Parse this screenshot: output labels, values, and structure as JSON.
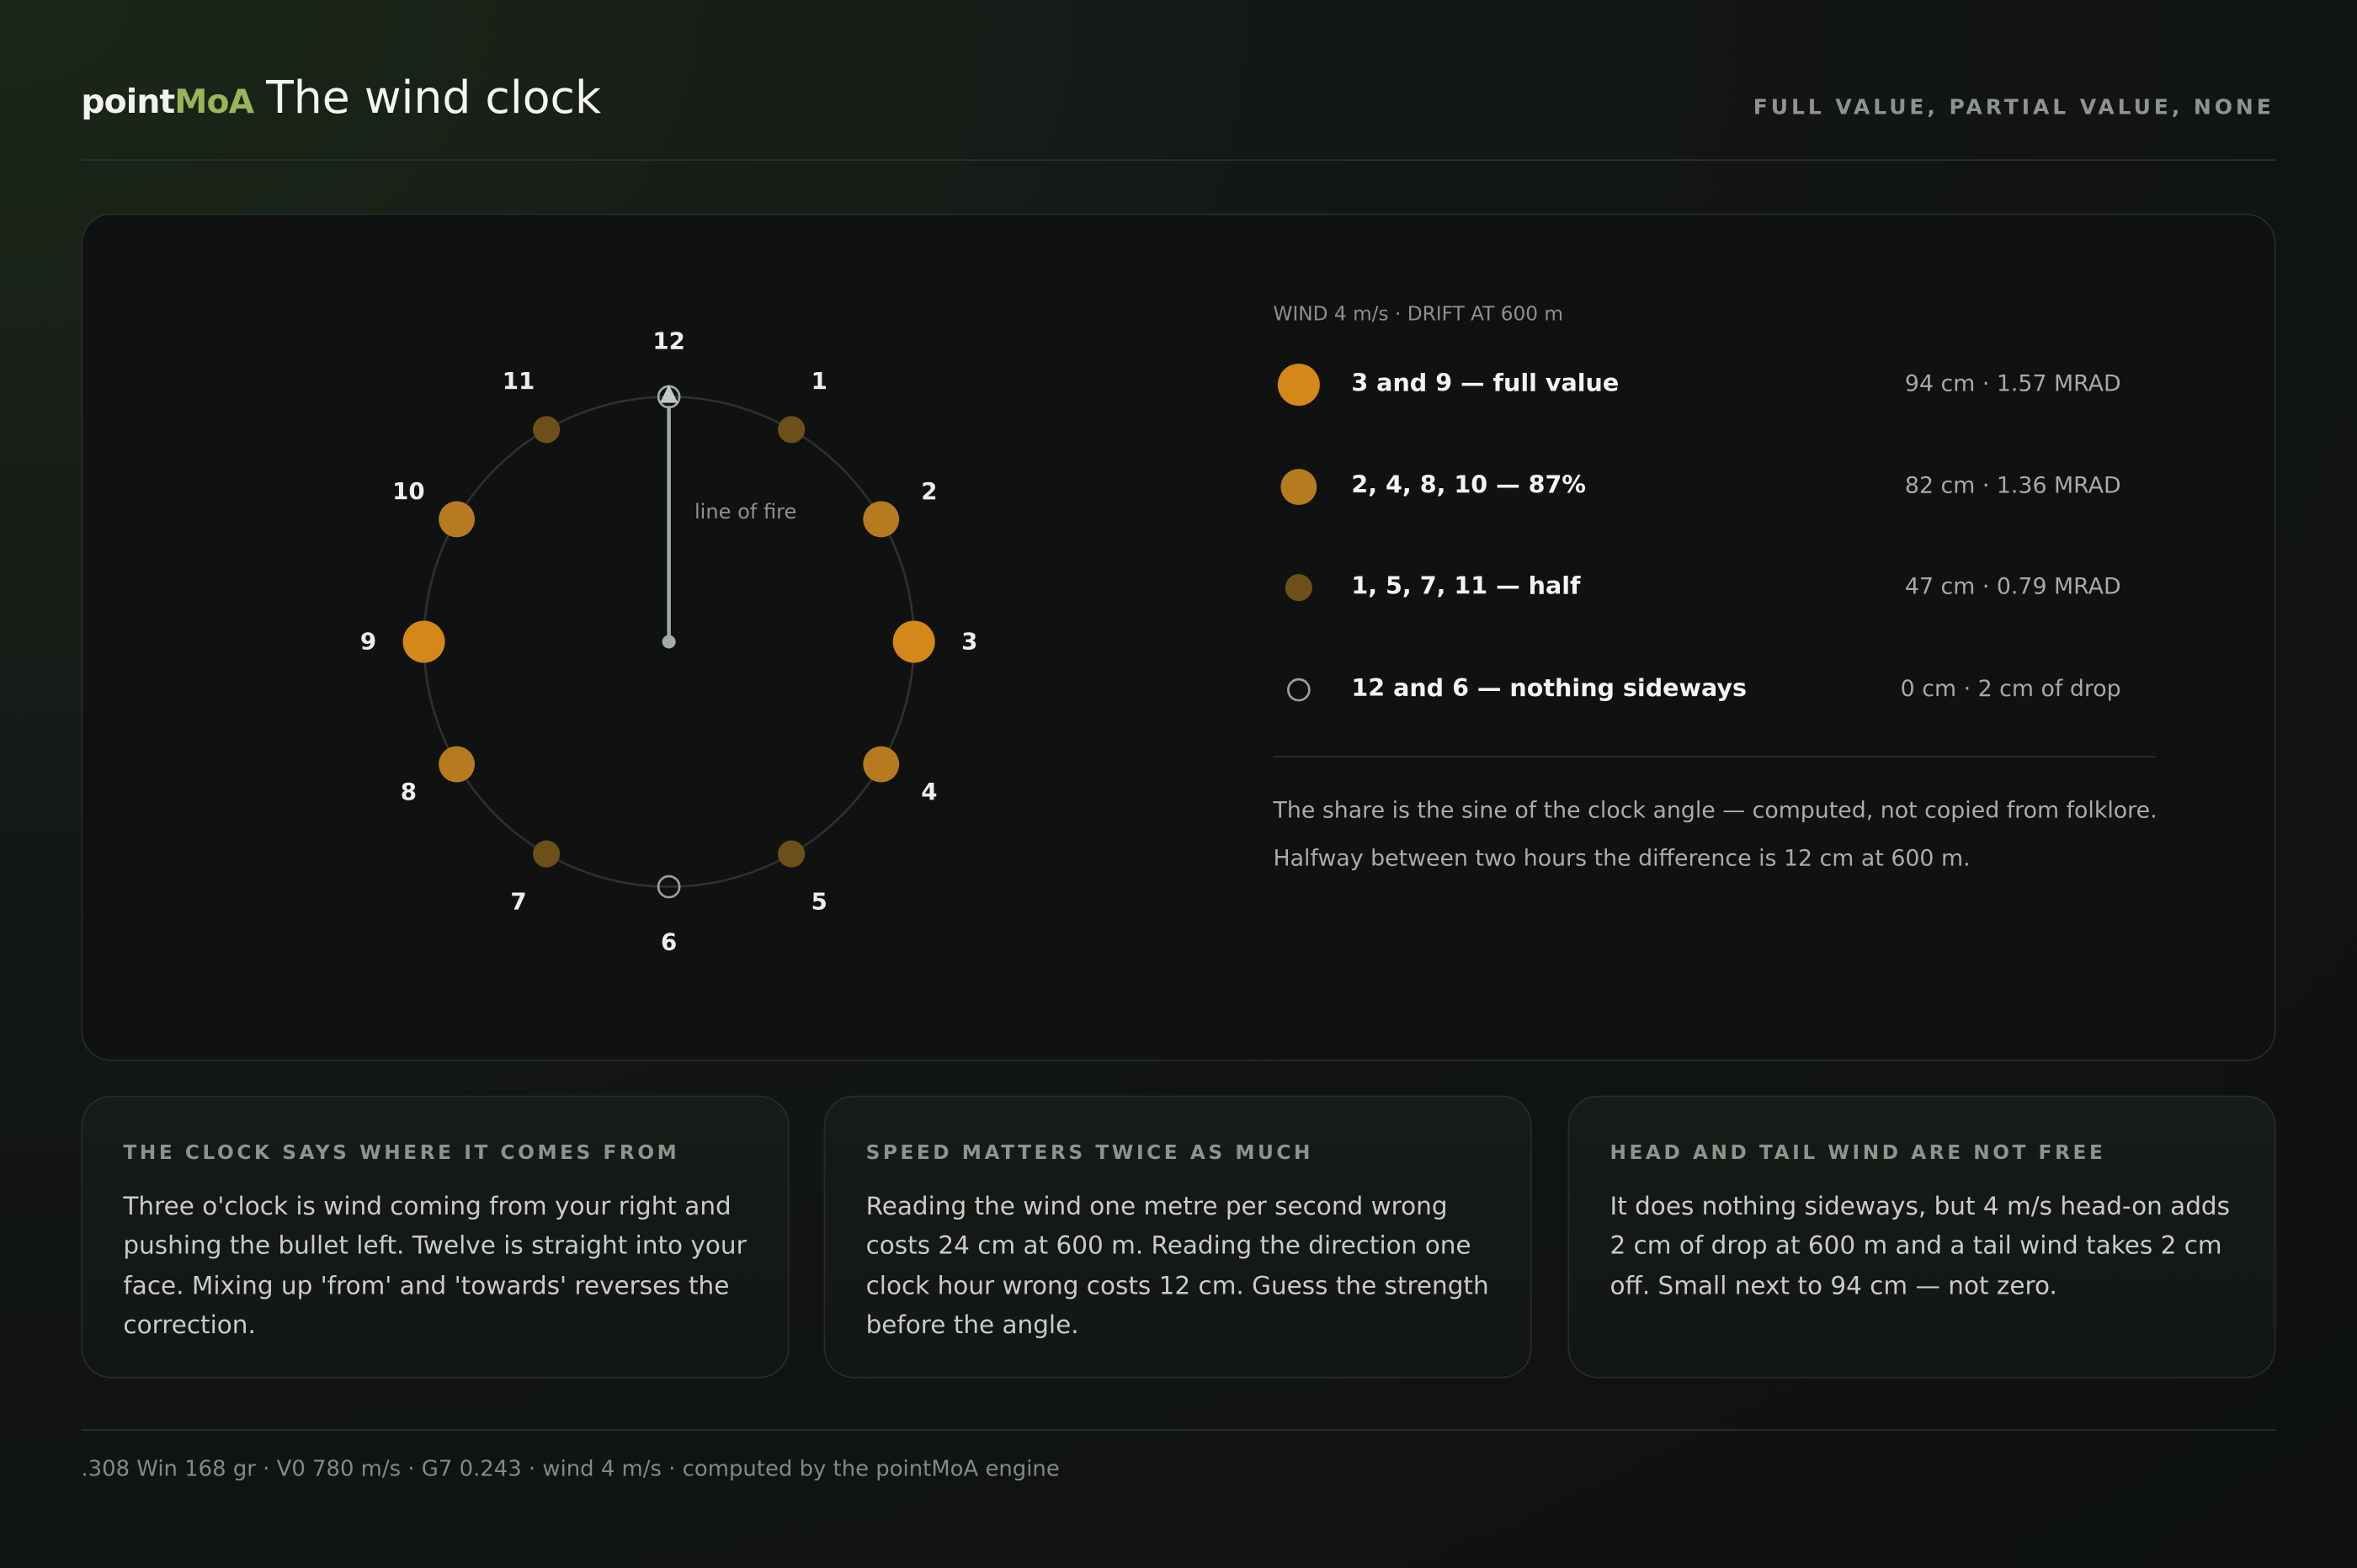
{
  "header": {
    "brand": [
      "point",
      "MoA"
    ],
    "title": "The wind clock",
    "tagline": "FULL VALUE, PARTIAL VALUE, NONE"
  },
  "clock": {
    "hours": [
      "12",
      "1",
      "2",
      "3",
      "4",
      "5",
      "6",
      "7",
      "8",
      "9",
      "10",
      "11"
    ],
    "line_label": "line of fire"
  },
  "legend": {
    "caption": "WIND 4 m/s · DRIFT AT 600 m",
    "rows": [
      {
        "label": "3 and 9 — full value",
        "value": "94 cm · 1.57 MRAD"
      },
      {
        "label": "2, 4, 8, 10 — 87%",
        "value": "82 cm · 1.36 MRAD"
      },
      {
        "label": "1, 5, 7, 11 — half",
        "value": "47 cm · 0.79 MRAD"
      },
      {
        "label": "12 and 6 — nothing sideways",
        "value": "0 cm · 2 cm of drop"
      }
    ],
    "notes": [
      "The share is the sine of the clock angle — computed, not copied from folklore.",
      "Halfway between two hours the difference is 12 cm at 600 m."
    ]
  },
  "cards": [
    {
      "title": "THE CLOCK SAYS WHERE IT COMES FROM",
      "body": "Three o'clock is wind coming from your right and pushing the bullet left. Twelve is straight into your face. Mixing up 'from' and 'towards' reverses the correction."
    },
    {
      "title": "SPEED MATTERS TWICE AS MUCH",
      "body": "Reading the wind one metre per second wrong costs 24 cm at 600 m. Reading the direction one clock hour wrong costs 12 cm. Guess the strength before the angle."
    },
    {
      "title": "HEAD AND TAIL WIND ARE NOT FREE",
      "body": "It does nothing sideways, but 4 m/s head-on adds 2 cm of drop at 600 m and a tail wind takes 2 cm off. Small next to 94 cm — not zero."
    }
  ],
  "footer": ".308 Win 168 gr · V0 780 m/s · G7 0.243 · wind 4 m/s · computed by the pointMoA engine"
}
